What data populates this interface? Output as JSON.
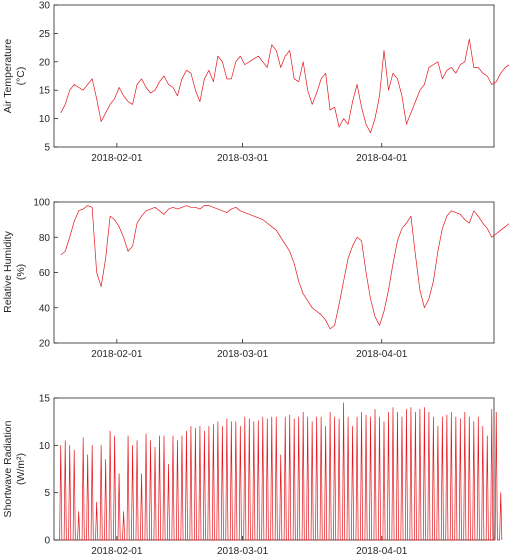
{
  "figure": {
    "line_color": "#e4161c",
    "axis_color": "#262626"
  },
  "chart_data": [
    {
      "type": "line",
      "ylabel_line1": "Air Temperature",
      "ylabel_line2": "(°C)",
      "ylim": [
        5,
        30
      ],
      "yticks": [
        5,
        10,
        15,
        20,
        25,
        30
      ],
      "xlim": [
        "2018-01-18",
        "2018-04-26"
      ],
      "xticks": [
        "2018-02-01",
        "2018-03-01",
        "2018-04-01"
      ],
      "resolution": "daily approximation of a sub-daily trace",
      "series": [
        {
          "x_start": "2018-01-19",
          "values": [
            11,
            12.5,
            15,
            16,
            15.5,
            15,
            16,
            17,
            13.5,
            9.5,
            11,
            12.5,
            13.5,
            15.5,
            14,
            13,
            12.5,
            16,
            17,
            15.5,
            14.5,
            15,
            16.5,
            17.5,
            16,
            15.5,
            14,
            17,
            18.5,
            18,
            15,
            13,
            17,
            18.5,
            16.5,
            21,
            20,
            17,
            17,
            20,
            21,
            19.5,
            20,
            20.5,
            21,
            20,
            19,
            23,
            22,
            19,
            21,
            22,
            17,
            16.5,
            20,
            15,
            12.5,
            14.5,
            17,
            18,
            11.5,
            12,
            8.5,
            10,
            9,
            13,
            16,
            12,
            9,
            7.5,
            10,
            14,
            22,
            15,
            18,
            17,
            14,
            9,
            11,
            13,
            15,
            16,
            19,
            19.5,
            20,
            17,
            18.5,
            19,
            18,
            19.5,
            20,
            24,
            19,
            19,
            18,
            17.5,
            16,
            16.5,
            18,
            19,
            19.5
          ]
        }
      ]
    },
    {
      "type": "line",
      "ylabel_line1": "Relative Humidity",
      "ylabel_line2": "(%)",
      "ylim": [
        20,
        100
      ],
      "yticks": [
        20,
        40,
        60,
        80,
        100
      ],
      "xlim": [
        "2018-01-18",
        "2018-04-26"
      ],
      "xticks": [
        "2018-02-01",
        "2018-03-01",
        "2018-04-01"
      ],
      "resolution": "daily approximation of a sub-daily trace",
      "series": [
        {
          "x_start": "2018-01-19",
          "values": [
            70,
            72,
            80,
            89,
            95,
            96,
            98,
            97,
            60,
            52,
            68,
            92,
            90,
            86,
            80,
            72,
            75,
            88,
            92,
            95,
            96,
            97,
            95,
            93,
            96,
            97,
            96,
            97,
            98,
            97,
            97,
            96,
            98,
            98,
            97,
            96,
            95,
            94,
            96,
            97,
            95,
            94,
            93,
            92,
            91,
            90,
            88,
            86,
            84,
            80,
            76,
            72,
            65,
            55,
            48,
            44,
            40,
            38,
            36,
            33,
            28,
            30,
            42,
            55,
            68,
            75,
            80,
            78,
            60,
            45,
            35,
            30,
            38,
            50,
            65,
            78,
            85,
            88,
            92,
            70,
            50,
            40,
            45,
            55,
            72,
            85,
            92,
            95,
            94,
            93,
            90,
            88,
            95,
            92,
            88,
            85,
            80,
            82,
            84,
            86,
            88,
            90,
            92
          ]
        }
      ]
    },
    {
      "type": "line",
      "ylabel_line1": "Shortwave Radiation",
      "ylabel_line2": "(W/m²)",
      "ylim": [
        0,
        15
      ],
      "yticks": [
        0,
        5,
        10,
        15
      ],
      "xlim": [
        "2018-01-18",
        "2018-04-26"
      ],
      "xticks": [
        "2018-02-01",
        "2018-03-01",
        "2018-04-01"
      ],
      "resolution": "daily peak values of a diurnal cycle",
      "series": [
        {
          "x_start": "2018-01-19",
          "values": [
            10,
            10.5,
            10,
            9.5,
            3,
            10.8,
            9,
            10,
            4,
            10,
            8.5,
            11.5,
            11,
            7,
            3,
            11,
            10,
            10.5,
            7,
            11.2,
            10.5,
            9.8,
            11,
            11,
            8,
            11,
            10.5,
            11,
            11.5,
            12,
            11.8,
            12,
            11.5,
            12,
            12.2,
            12.5,
            12,
            12.8,
            12.5,
            12.5,
            12,
            13,
            12.8,
            12.5,
            12.6,
            13,
            12.8,
            13,
            13,
            9,
            13,
            13.2,
            12.8,
            13,
            13.5,
            13,
            12.5,
            13,
            13,
            12,
            13.5,
            13,
            12.8,
            14.5,
            13,
            12,
            13,
            13.5,
            13.2,
            13,
            13.8,
            13,
            12.5,
            13.5,
            14,
            13.5,
            13,
            13.8,
            14,
            13.5,
            13.8,
            14,
            13.5,
            13,
            12,
            13,
            13.2,
            13.5,
            13,
            12.8,
            13.5,
            13,
            12.5,
            13,
            12,
            11,
            13.8,
            13.5,
            5
          ]
        }
      ]
    }
  ]
}
